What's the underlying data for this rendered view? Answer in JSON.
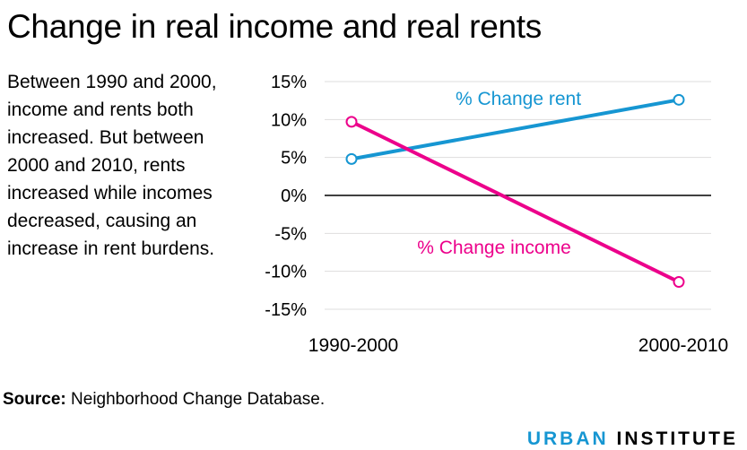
{
  "title": "Change in real income and real rents",
  "description": "Between 1990 and 2000, income and rents both increased. But between 2000 and 2010, rents increased while incomes decreased, causing an increase in rent burdens.",
  "source_label": "Source:",
  "source_text": " Neighborhood Change Database.",
  "logo": {
    "part1": "URBAN",
    "part2": "INSTITUTE"
  },
  "colors": {
    "rent": "#1696d2",
    "income": "#ec008b",
    "brand": "#1696d2"
  },
  "chart_data": {
    "type": "line",
    "categories": [
      "1990-2000",
      "2000-2010"
    ],
    "series": [
      {
        "name": "% Change rent",
        "values": [
          4.8,
          12.6
        ],
        "color": "#1696d2"
      },
      {
        "name": "% Change income",
        "values": [
          9.7,
          -11.4
        ],
        "color": "#ec008b"
      }
    ],
    "ylim": [
      -15,
      15
    ],
    "yticks": [
      15,
      10,
      5,
      0,
      -5,
      -10,
      -15
    ],
    "ytick_labels": [
      "15%",
      "10%",
      "5%",
      "0%",
      "-5%",
      "-10%",
      "-15%"
    ],
    "grid": true,
    "xlabel": "",
    "ylabel": ""
  }
}
